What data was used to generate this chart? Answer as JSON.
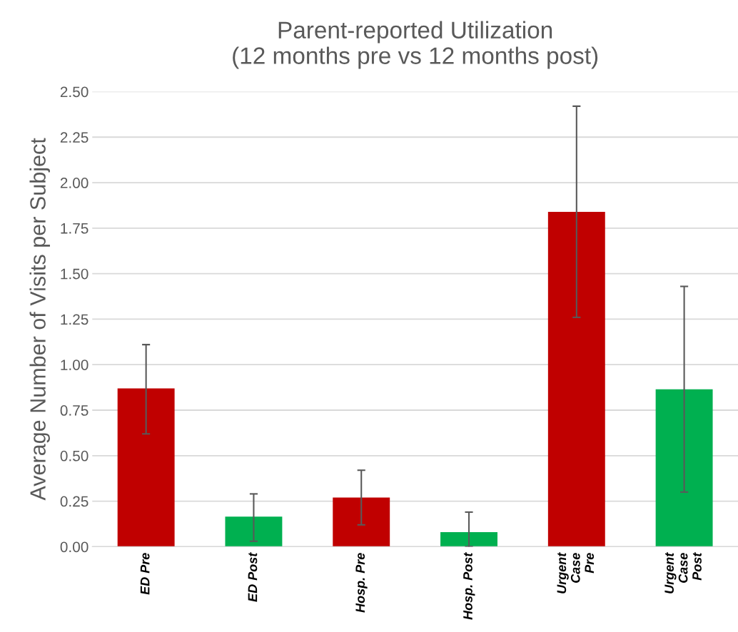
{
  "chart_data": {
    "type": "bar",
    "title": "Parent-reported Utilization\n(12 months pre vs 12 months post)",
    "ylabel": "Average Number of Visits per Subject",
    "categories": [
      "ED Pre",
      "ED Post",
      "Hosp. Pre",
      "Hosp. Post",
      "Urgent\nCase\nPre",
      "Urgent\nCase\nPost"
    ],
    "values": [
      0.87,
      0.165,
      0.27,
      0.08,
      1.84,
      0.865
    ],
    "colors": [
      "#c00000",
      "#00b050",
      "#c00000",
      "#00b050",
      "#c00000",
      "#00b050"
    ],
    "errors": [
      [
        0.62,
        1.11
      ],
      [
        0.03,
        0.29
      ],
      [
        0.12,
        0.42
      ],
      [
        0.0,
        0.19
      ],
      [
        1.26,
        2.42
      ],
      [
        0.3,
        1.43
      ]
    ],
    "ylim": [
      0,
      2.5
    ],
    "yticks": [
      {
        "value": 0,
        "label": "0.00"
      },
      {
        "value": 0.25,
        "label": "0.25"
      },
      {
        "value": 0.5,
        "label": "0.50"
      },
      {
        "value": 0.75,
        "label": "0.75"
      },
      {
        "value": 1,
        "label": "1.00"
      },
      {
        "value": 1.25,
        "label": "1.25"
      },
      {
        "value": 1.5,
        "label": "1.50"
      },
      {
        "value": 1.75,
        "label": "1.75"
      },
      {
        "value": 2,
        "label": "2.00"
      },
      {
        "value": 2.25,
        "label": "2.25"
      },
      {
        "value": 2.5,
        "label": "2.50"
      }
    ],
    "grid": "y",
    "legend": false
  }
}
